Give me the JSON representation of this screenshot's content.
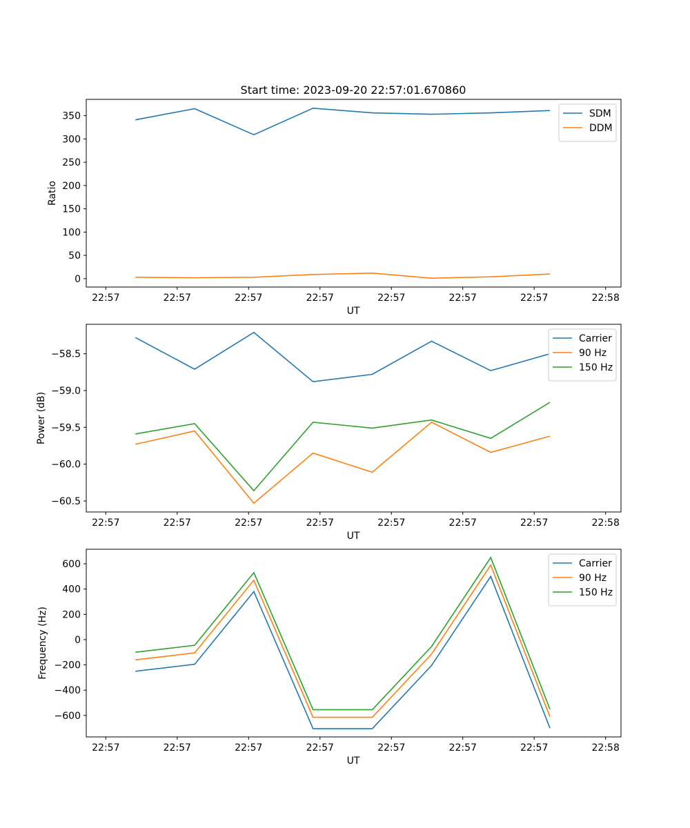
{
  "figure_title": "Start time: 2023-09-20 22:57:01.670860",
  "chart_data": [
    {
      "type": "line",
      "title": "Start time: 2023-09-20 22:57:01.670860",
      "xlabel": "UT",
      "ylabel": "Ratio",
      "xticks": [
        "22:57",
        "22:57",
        "22:57",
        "22:57",
        "22:57",
        "22:57",
        "22:57"
      ],
      "xtick_last": "22:58",
      "x": [
        1,
        2,
        3,
        4,
        5,
        6,
        7,
        8
      ],
      "xlim": [
        0.17,
        9.2
      ],
      "ylim": [
        -18,
        385
      ],
      "yticks": [
        0,
        50,
        100,
        150,
        200,
        250,
        300,
        350
      ],
      "legend": "top-right",
      "series": [
        {
          "name": "SDM",
          "color": "#1f77b4",
          "values": [
            341,
            365,
            309,
            366,
            356,
            353,
            356,
            361
          ]
        },
        {
          "name": "DDM",
          "color": "#ff7f0e",
          "values": [
            3,
            2,
            3,
            9,
            12,
            1,
            4,
            10
          ]
        }
      ]
    },
    {
      "type": "line",
      "title": "",
      "xlabel": "UT",
      "ylabel": "Power (dB)",
      "xticks": [
        "22:57",
        "22:57",
        "22:57",
        "22:57",
        "22:57",
        "22:57",
        "22:57"
      ],
      "xtick_last": "22:58",
      "x": [
        1,
        2,
        3,
        4,
        5,
        6,
        7,
        8
      ],
      "xlim": [
        0.17,
        9.2
      ],
      "ylim": [
        -60.65,
        -58.1
      ],
      "yticks": [
        -60.5,
        -60.0,
        -59.5,
        -59.0,
        -58.5
      ],
      "ytick_labels": [
        "−60.5",
        "−60.0",
        "−59.5",
        "−59.0",
        "−58.5"
      ],
      "legend": "top-right",
      "series": [
        {
          "name": "Carrier",
          "color": "#1f77b4",
          "values": [
            -58.28,
            -58.71,
            -58.21,
            -58.88,
            -58.78,
            -58.33,
            -58.73,
            -58.5
          ]
        },
        {
          "name": "90 Hz",
          "color": "#ff7f0e",
          "values": [
            -59.73,
            -59.55,
            -60.53,
            -59.85,
            -60.11,
            -59.43,
            -59.84,
            -59.62
          ]
        },
        {
          "name": "150 Hz",
          "color": "#2ca02c",
          "values": [
            -59.59,
            -59.45,
            -60.36,
            -59.43,
            -59.51,
            -59.4,
            -59.65,
            -59.16
          ]
        }
      ]
    },
    {
      "type": "line",
      "title": "",
      "xlabel": "UT",
      "ylabel": "Frequency (Hz)",
      "xticks": [
        "22:57",
        "22:57",
        "22:57",
        "22:57",
        "22:57",
        "22:57",
        "22:57"
      ],
      "xtick_last": "22:58",
      "x": [
        1,
        2,
        3,
        4,
        5,
        6,
        7,
        8
      ],
      "xlim": [
        0.17,
        9.2
      ],
      "ylim": [
        -770,
        715
      ],
      "yticks": [
        -600,
        -400,
        -200,
        0,
        200,
        400,
        600
      ],
      "ytick_labels": [
        "−600",
        "−400",
        "−200",
        "0",
        "200",
        "400",
        "600"
      ],
      "legend": "top-right",
      "series": [
        {
          "name": "Carrier",
          "color": "#1f77b4",
          "values": [
            -250,
            -195,
            380,
            -705,
            -705,
            -205,
            500,
            -700
          ]
        },
        {
          "name": "90 Hz",
          "color": "#ff7f0e",
          "values": [
            -160,
            -105,
            470,
            -615,
            -615,
            -115,
            590,
            -610
          ]
        },
        {
          "name": "150 Hz",
          "color": "#2ca02c",
          "values": [
            -100,
            -45,
            530,
            -555,
            -555,
            -55,
            650,
            -550
          ]
        }
      ]
    }
  ]
}
